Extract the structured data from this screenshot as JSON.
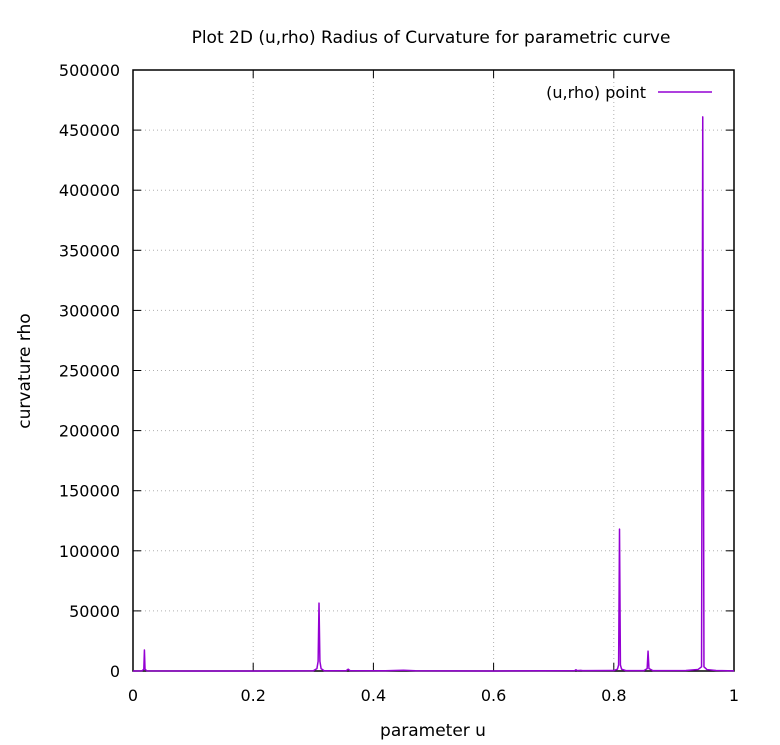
{
  "chart_data": {
    "type": "line",
    "title": "Plot 2D (u,rho) Radius of Curvature for parametric curve",
    "xlabel": "parameter u",
    "ylabel": "curvature rho",
    "xlim": [
      0,
      1
    ],
    "ylim": [
      0,
      500000
    ],
    "x_ticks": [
      0,
      0.2,
      0.4,
      0.6,
      0.8,
      1
    ],
    "x_tick_labels": [
      "0",
      "0.2",
      "0.4",
      "0.6",
      "0.8",
      "1"
    ],
    "y_ticks": [
      0,
      50000,
      100000,
      150000,
      200000,
      250000,
      300000,
      350000,
      400000,
      450000,
      500000
    ],
    "y_tick_labels": [
      "0",
      "50000",
      "100000",
      "150000",
      "200000",
      "250000",
      "300000",
      "350000",
      "400000",
      "450000",
      "500000"
    ],
    "grid": true,
    "legend_position": "top-right",
    "series": [
      {
        "name": "(u,rho) point",
        "color": "#9400d3",
        "points": [
          [
            0,
            0
          ],
          [
            0.015,
            100
          ],
          [
            0.018,
            1500
          ],
          [
            0.019,
            17500
          ],
          [
            0.02,
            1500
          ],
          [
            0.023,
            100
          ],
          [
            0.1,
            50
          ],
          [
            0.2,
            50
          ],
          [
            0.3,
            200
          ],
          [
            0.306,
            2000
          ],
          [
            0.308,
            8000
          ],
          [
            0.3095,
            56500
          ],
          [
            0.311,
            8000
          ],
          [
            0.313,
            2000
          ],
          [
            0.318,
            200
          ],
          [
            0.355,
            300
          ],
          [
            0.358,
            1500
          ],
          [
            0.361,
            300
          ],
          [
            0.42,
            200
          ],
          [
            0.45,
            600
          ],
          [
            0.47,
            200
          ],
          [
            0.6,
            50
          ],
          [
            0.735,
            300
          ],
          [
            0.737,
            1000
          ],
          [
            0.739,
            300
          ],
          [
            0.745,
            500
          ],
          [
            0.748,
            300
          ],
          [
            0.8,
            400
          ],
          [
            0.806,
            1500
          ],
          [
            0.808,
            5000
          ],
          [
            0.8095,
            118000
          ],
          [
            0.811,
            5000
          ],
          [
            0.813,
            1500
          ],
          [
            0.82,
            300
          ],
          [
            0.85,
            300
          ],
          [
            0.8555,
            2000
          ],
          [
            0.857,
            16500
          ],
          [
            0.8585,
            2000
          ],
          [
            0.865,
            300
          ],
          [
            0.92,
            400
          ],
          [
            0.94,
            1200
          ],
          [
            0.946,
            3500
          ],
          [
            0.948,
            461000
          ],
          [
            0.95,
            3500
          ],
          [
            0.955,
            1200
          ],
          [
            0.97,
            400
          ],
          [
            1,
            100
          ]
        ]
      }
    ]
  }
}
